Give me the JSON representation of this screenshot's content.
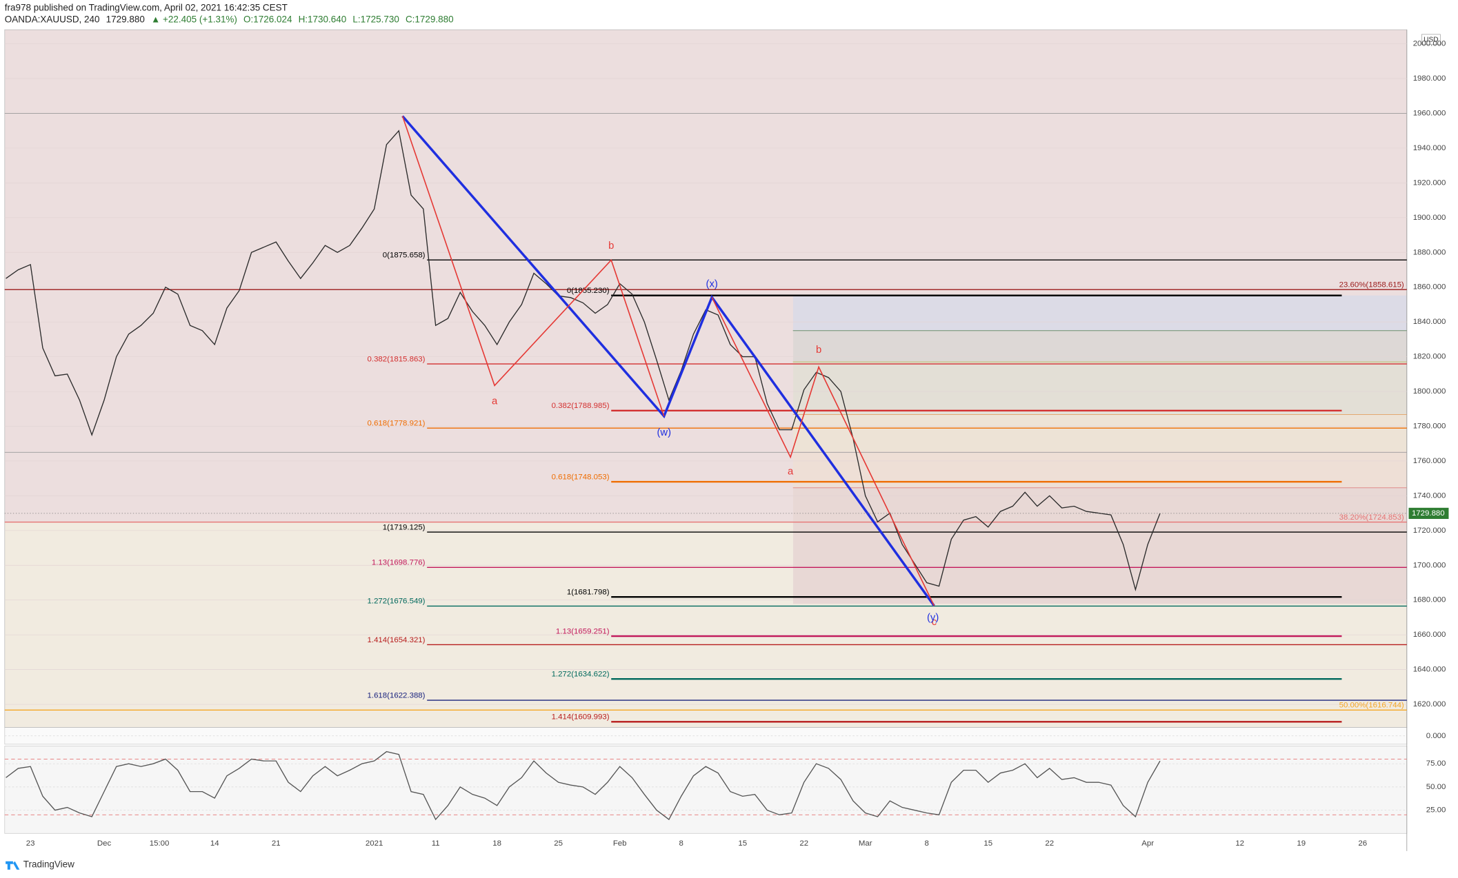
{
  "header": {
    "publisher": "fra978 published on TradingView.com, April 02, 2021 16:42:35 CEST",
    "symbol": "OANDA:XAUUSD, 240",
    "last": "1729.880",
    "change": "▲ +22.405 (+1.31%)",
    "open": "O:1726.024",
    "high": "H:1730.640",
    "low": "L:1725.730",
    "close": "C:1729.880",
    "currency": "USD"
  },
  "footer": {
    "brand": "TradingView"
  },
  "chart_data": [
    {
      "type": "line",
      "color": "#2b2b2b",
      "x": [
        -2,
        -1,
        0,
        1,
        2,
        3,
        4,
        5,
        6,
        7,
        8,
        9,
        10,
        11,
        12,
        13,
        14,
        15,
        16,
        17,
        18,
        19,
        20,
        21,
        22,
        23,
        24,
        25,
        26,
        27,
        28,
        29,
        30,
        31,
        32,
        33,
        34,
        35,
        36,
        37,
        38,
        39,
        40,
        41,
        42,
        43,
        44,
        45,
        46,
        47,
        48,
        49,
        50,
        51,
        52,
        53,
        54,
        55,
        56,
        57,
        58,
        59,
        60,
        61,
        62,
        63,
        64,
        65,
        66,
        67,
        68,
        69,
        70,
        71,
        72,
        73,
        74,
        75,
        76,
        77,
        78,
        79,
        80,
        81,
        82,
        83,
        84,
        85,
        86,
        87,
        88,
        89,
        90,
        91,
        92
      ],
      "values": [
        1865,
        1870,
        1873,
        1825,
        1809,
        1810,
        1795,
        1775,
        1795,
        1820,
        1833,
        1838,
        1845,
        1860,
        1856,
        1838,
        1835,
        1827,
        1848,
        1858,
        1880,
        1883,
        1886,
        1875,
        1865,
        1874,
        1884,
        1880,
        1884,
        1894,
        1905,
        1942,
        1950,
        1913,
        1905,
        1838,
        1842,
        1857,
        1846,
        1838,
        1827,
        1840,
        1850,
        1868,
        1862,
        1855,
        1854,
        1851,
        1845,
        1850,
        1862,
        1856,
        1840,
        1818,
        1795,
        1812,
        1833,
        1847,
        1844,
        1827,
        1820,
        1820,
        1793,
        1778,
        1778,
        1801,
        1811,
        1808,
        1800,
        1773,
        1740,
        1725,
        1730,
        1712,
        1701,
        1690,
        1688,
        1715,
        1726,
        1728,
        1722,
        1731,
        1734,
        1742,
        1734,
        1740,
        1733,
        1734,
        1731,
        1730,
        1729,
        1712,
        1686,
        1712,
        1729.88
      ],
      "xlim": [
        -2.1,
        112.1
      ],
      "ylim": [
        1606.7,
        2008.1
      ],
      "xticks": [
        {
          "value": 0,
          "label": "23"
        },
        {
          "value": 6,
          "label": "Dec"
        },
        {
          "value": 10.5,
          "label": "15:00"
        },
        {
          "value": 15,
          "label": "14"
        },
        {
          "value": 20,
          "label": "21"
        },
        {
          "value": 28,
          "label": "2021"
        },
        {
          "value": 33,
          "label": "11"
        },
        {
          "value": 38,
          "label": "18"
        },
        {
          "value": 43,
          "label": "25"
        },
        {
          "value": 48,
          "label": "Feb"
        },
        {
          "value": 53,
          "label": "8"
        },
        {
          "value": 58,
          "label": "15"
        },
        {
          "value": 63,
          "label": "22"
        },
        {
          "value": 68,
          "label": "Mar"
        },
        {
          "value": 73,
          "label": "8"
        },
        {
          "value": 78,
          "label": "15"
        },
        {
          "value": 83,
          "label": "22"
        },
        {
          "value": 91,
          "label": "Apr"
        },
        {
          "value": 98.5,
          "label": "12"
        },
        {
          "value": 103.5,
          "label": "19"
        },
        {
          "value": 108.5,
          "label": "26"
        }
      ],
      "yticks": [
        {
          "value": 1620,
          "label": "1620.000"
        },
        {
          "value": 1640,
          "label": "1640.000"
        },
        {
          "value": 1660,
          "label": "1660.000"
        },
        {
          "value": 1680,
          "label": "1680.000"
        },
        {
          "value": 1700,
          "label": "1700.000"
        },
        {
          "value": 1720,
          "label": "1720.000"
        },
        {
          "value": 1740,
          "label": "1740.000"
        },
        {
          "value": 1760,
          "label": "1760.000"
        },
        {
          "value": 1780,
          "label": "1780.000"
        },
        {
          "value": 1800,
          "label": "1800.000"
        },
        {
          "value": 1820,
          "label": "1820.000"
        },
        {
          "value": 1840,
          "label": "1840.000"
        },
        {
          "value": 1860,
          "label": "1860.000"
        },
        {
          "value": 1880,
          "label": "1880.000"
        },
        {
          "value": 1900,
          "label": "1900.000"
        },
        {
          "value": 1920,
          "label": "1920.000"
        },
        {
          "value": 1940,
          "label": "1940.000"
        },
        {
          "value": 1960,
          "label": "1960.000"
        },
        {
          "value": 1980,
          "label": "1980.000"
        },
        {
          "value": 2000,
          "label": "2000.000"
        }
      ],
      "last_price": {
        "value": 1729.88,
        "label": "1729.880",
        "color": "#2e7d32"
      },
      "hlines": [
        {
          "value": 1960,
          "x0": -2.1,
          "x1": 112.1,
          "color": "#9a9a9a"
        },
        {
          "value": 1765,
          "x0": -2.1,
          "x1": 112.1,
          "color": "#9a9a9a"
        },
        {
          "value": 1835,
          "x0": 62.1,
          "x1": 112.1,
          "color": "#6d8f6d"
        },
        {
          "value": 1817,
          "x0": 62.1,
          "x1": 112.1,
          "color": "#b8b86a"
        },
        {
          "value": 1786.7,
          "x0": 62.1,
          "x1": 112.1,
          "color": "#e0a060"
        },
        {
          "value": 1744.6,
          "x0": 62.1,
          "x1": 112.1,
          "color": "#e08a8a"
        }
      ],
      "levels": [
        {
          "label": "0(1875.658)",
          "value": 1875.658,
          "x0": 32.3,
          "x1": 112.1,
          "color": "#000000",
          "thick": false,
          "side": "left"
        },
        {
          "label": "23.60%(1858.615)",
          "value": 1858.615,
          "x0": -2.1,
          "x1": 112.1,
          "color": "#9b1b1b",
          "thick": false,
          "side": "right"
        },
        {
          "label": "0(1855.230)",
          "value": 1855.23,
          "x0": 47.3,
          "x1": 106.8,
          "color": "#000000",
          "thick": true,
          "side": "left"
        },
        {
          "label": "0.382(1815.863)",
          "value": 1815.863,
          "x0": 32.3,
          "x1": 112.1,
          "color": "#d32f2f",
          "thick": false,
          "side": "left"
        },
        {
          "label": "0.382(1788.985)",
          "value": 1788.985,
          "x0": 47.3,
          "x1": 106.8,
          "color": "#d32f2f",
          "thick": true,
          "side": "left"
        },
        {
          "label": "0.618(1778.921)",
          "value": 1778.921,
          "x0": 32.3,
          "x1": 112.1,
          "color": "#ef6c00",
          "thick": false,
          "side": "left"
        },
        {
          "label": "0.618(1748.053)",
          "value": 1748.053,
          "x0": 47.3,
          "x1": 106.8,
          "color": "#ef6c00",
          "thick": true,
          "side": "left"
        },
        {
          "label": "38.20%(1724.853)",
          "value": 1724.853,
          "x0": -2.1,
          "x1": 112.1,
          "color": "#e57373",
          "thick": false,
          "side": "right"
        },
        {
          "label": "1(1719.125)",
          "value": 1719.125,
          "x0": 32.3,
          "x1": 112.1,
          "color": "#000000",
          "thick": false,
          "side": "left"
        },
        {
          "label": "1.13(1698.776)",
          "value": 1698.776,
          "x0": 32.3,
          "x1": 112.1,
          "color": "#c2185b",
          "thick": false,
          "side": "left"
        },
        {
          "label": "1(1681.798)",
          "value": 1681.798,
          "x0": 47.3,
          "x1": 106.8,
          "color": "#000000",
          "thick": true,
          "side": "left"
        },
        {
          "label": "1.272(1676.549)",
          "value": 1676.549,
          "x0": 32.3,
          "x1": 112.1,
          "color": "#00695c",
          "thick": false,
          "side": "left"
        },
        {
          "label": "1.13(1659.251)",
          "value": 1659.251,
          "x0": 47.3,
          "x1": 106.8,
          "color": "#c2185b",
          "thick": true,
          "side": "left"
        },
        {
          "label": "1.414(1654.321)",
          "value": 1654.321,
          "x0": 32.3,
          "x1": 112.1,
          "color": "#b71c1c",
          "thick": false,
          "side": "left"
        },
        {
          "label": "1.272(1634.622)",
          "value": 1634.622,
          "x0": 47.3,
          "x1": 106.8,
          "color": "#00695c",
          "thick": true,
          "side": "left"
        },
        {
          "label": "1.618(1622.388)",
          "value": 1622.388,
          "x0": 32.3,
          "x1": 112.1,
          "color": "#1a237e",
          "thick": false,
          "side": "left"
        },
        {
          "label": "50.00%(1616.744)",
          "value": 1616.744,
          "x0": -2.1,
          "x1": 112.1,
          "color": "#f5a623",
          "thick": false,
          "side": "right"
        },
        {
          "label": "1.414(1609.993)",
          "value": 1609.993,
          "x0": 47.3,
          "x1": 106.8,
          "color": "#b71c1c",
          "thick": true,
          "side": "left"
        }
      ],
      "waves": [
        {
          "color": "#1f2fe0",
          "thick": true,
          "x": [
            30.3,
            51.6,
            55.5,
            73.6
          ],
          "y": [
            1958.4,
            1785.8,
            1854.2,
            1676.7
          ]
        },
        {
          "color": "#e53935",
          "thick": false,
          "x": [
            30.3,
            37.8,
            47.3,
            51.6
          ],
          "y": [
            1958.4,
            1803.4,
            1875.6,
            1785.8
          ]
        },
        {
          "color": "#e53935",
          "thick": false,
          "x": [
            55.5,
            61.9,
            64.2,
            73.6
          ],
          "y": [
            1854.2,
            1762.2,
            1814.1,
            1676.7
          ]
        }
      ],
      "wave_labels": [
        {
          "text": "b",
          "x": 47.3,
          "y": 1883.6,
          "color": "#e53935"
        },
        {
          "text": "a",
          "x": 37.8,
          "y": 1794.3,
          "color": "#e53935"
        },
        {
          "text": "(w)",
          "x": 51.6,
          "y": 1776.1,
          "color": "#1f2fe0"
        },
        {
          "text": "(x)",
          "x": 55.5,
          "y": 1861.7,
          "color": "#1f2fe0"
        },
        {
          "text": "b",
          "x": 64.2,
          "y": 1823.7,
          "color": "#e53935"
        },
        {
          "text": "a",
          "x": 61.9,
          "y": 1753.7,
          "color": "#e53935"
        },
        {
          "text": "c",
          "x": 73.6,
          "y": 1667.1,
          "color": "#e53935"
        },
        {
          "text": "(y)",
          "x": 73.5,
          "y": 1669.8,
          "color": "#1f2fe0"
        }
      ]
    },
    {
      "type": "osc",
      "ylim": [
        -1,
        1
      ],
      "yticks": [
        {
          "value": 0,
          "label": "0.000"
        }
      ]
    },
    {
      "type": "line",
      "color": "#555555",
      "x": [
        -2,
        -1,
        0,
        1,
        2,
        3,
        4,
        5,
        6,
        7,
        8,
        9,
        10,
        11,
        12,
        13,
        14,
        15,
        16,
        17,
        18,
        19,
        20,
        21,
        22,
        23,
        24,
        25,
        26,
        27,
        28,
        29,
        30,
        31,
        32,
        33,
        34,
        35,
        36,
        37,
        38,
        39,
        40,
        41,
        42,
        43,
        44,
        45,
        46,
        47,
        48,
        49,
        50,
        51,
        52,
        53,
        54,
        55,
        56,
        57,
        58,
        59,
        60,
        61,
        62,
        63,
        64,
        65,
        66,
        67,
        68,
        69,
        70,
        71,
        72,
        73,
        74,
        75,
        76,
        77,
        78,
        79,
        80,
        81,
        82,
        83,
        84,
        85,
        86,
        87,
        88,
        89,
        90,
        91,
        92
      ],
      "values": [
        60,
        70,
        72,
        40,
        25,
        28,
        22,
        18,
        45,
        72,
        75,
        72,
        75,
        80,
        68,
        45,
        45,
        38,
        62,
        70,
        80,
        78,
        78,
        55,
        45,
        62,
        72,
        62,
        68,
        75,
        78,
        88,
        85,
        45,
        42,
        15,
        30,
        50,
        42,
        38,
        30,
        50,
        60,
        78,
        65,
        55,
        52,
        50,
        42,
        55,
        72,
        60,
        42,
        25,
        15,
        40,
        62,
        72,
        65,
        45,
        40,
        42,
        25,
        20,
        22,
        55,
        75,
        70,
        58,
        35,
        22,
        18,
        35,
        28,
        25,
        22,
        20,
        55,
        68,
        68,
        55,
        65,
        68,
        75,
        60,
        70,
        58,
        60,
        55,
        55,
        52,
        30,
        18,
        55,
        78
      ],
      "xlim": [
        -2.1,
        112.1
      ],
      "ylim": [
        0,
        94
      ],
      "yticks": [
        {
          "value": 25,
          "label": "25.00"
        },
        {
          "value": 50,
          "label": "50.00"
        },
        {
          "value": 75,
          "label": "75.00"
        }
      ],
      "bands": [
        20,
        80
      ]
    }
  ]
}
